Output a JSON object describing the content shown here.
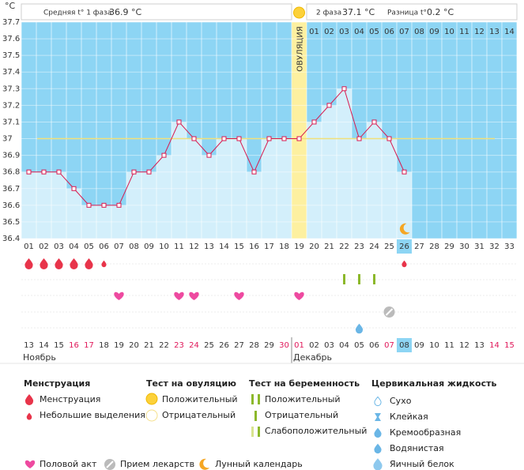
{
  "chart_data": {
    "type": "line",
    "y_unit": "°C",
    "header": {
      "phase1_label": "Средняя t° 1 фаза",
      "phase1_value": "36.9 °C",
      "phase2_label": "2 фаза",
      "phase2_value": "37.1 °C",
      "diff_label": "Разница t°",
      "diff_value": "0.2 °C"
    },
    "ovulation_label": "ОВУЛЯЦИЯ",
    "categories": [
      "01",
      "02",
      "03",
      "04",
      "05",
      "06",
      "07",
      "08",
      "09",
      "10",
      "11",
      "12",
      "13",
      "14",
      "15",
      "16",
      "17",
      "18",
      "19",
      "20",
      "21",
      "22",
      "23",
      "24",
      "25",
      "26",
      "27",
      "28",
      "29",
      "30",
      "31",
      "32",
      "33"
    ],
    "values": [
      36.8,
      36.8,
      36.8,
      36.7,
      36.6,
      36.6,
      36.6,
      36.8,
      36.8,
      36.9,
      37.1,
      37.0,
      36.9,
      37.0,
      37.0,
      36.8,
      37.0,
      37.0,
      37.0,
      37.1,
      37.2,
      37.3,
      37.0,
      37.1,
      37.0,
      36.8,
      null,
      null,
      null,
      null,
      null,
      null,
      null
    ],
    "color": "#d8194f",
    "ylim": [
      36.4,
      37.7
    ],
    "yticks": [
      36.4,
      36.5,
      36.6,
      36.7,
      36.8,
      36.9,
      37,
      37.1,
      37.2,
      37.3,
      37.4,
      37.5,
      37.6,
      37.7
    ],
    "coverline": 37,
    "ovulation_day": 19,
    "today": 26,
    "phase2_start": 20,
    "phase2_days": [
      "01",
      "02",
      "03",
      "04",
      "05",
      "06",
      "07",
      "08",
      "09",
      "10",
      "11",
      "12",
      "13",
      "14"
    ],
    "dates": [
      "13",
      "14",
      "15",
      "16",
      "17",
      "18",
      "19",
      "20",
      "21",
      "22",
      "23",
      "24",
      "25",
      "26",
      "27",
      "28",
      "29",
      "30",
      "01",
      "02",
      "03",
      "04",
      "05",
      "06",
      "07",
      "08",
      "09",
      "10",
      "11",
      "12",
      "13",
      "14",
      "15"
    ],
    "weekend_days": [
      4,
      5,
      11,
      12,
      18,
      19,
      25,
      32,
      33
    ],
    "months": [
      {
        "name": "Ноябрь",
        "day": 1
      },
      {
        "name": "Декабрь",
        "day": 19
      }
    ],
    "events": {
      "menstruation": [
        1,
        2,
        3,
        4,
        5
      ],
      "spotting": [
        6,
        26
      ],
      "pregnancy_negative": [
        22,
        23,
        24
      ],
      "sex": [
        7,
        11,
        12,
        15,
        19
      ],
      "medication": [
        25
      ],
      "cervical_watery": [
        23
      ],
      "moon": [
        26
      ]
    },
    "legend": {
      "menstruation": {
        "title": "Менструация",
        "items": [
          "Менструация",
          "Небольшие выделения"
        ]
      },
      "ovulation_test": {
        "title": "Тест на овуляцию",
        "items": [
          "Положительный",
          "Отрицательный"
        ]
      },
      "pregnancy_test": {
        "title": "Тест на беременность",
        "items": [
          "Положительный",
          "Отрицательный",
          "Слабоположительный"
        ]
      },
      "cervical": {
        "title": "Цервикальная жидкость",
        "items": [
          "Сухо",
          "Клейкая",
          "Кремообразная",
          "Водянистая",
          "Яичный белок"
        ]
      },
      "other": [
        "Половой акт",
        "Прием лекарств",
        "Лунный календарь"
      ]
    }
  }
}
